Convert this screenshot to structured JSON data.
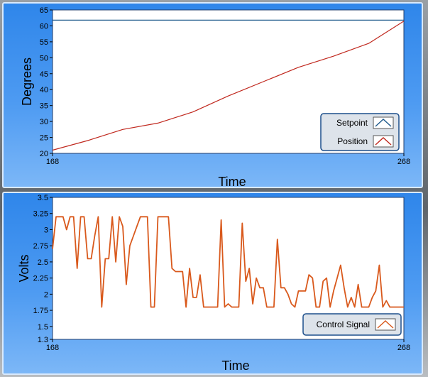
{
  "chart_data": [
    {
      "type": "line",
      "title": "",
      "xlabel": "Time",
      "ylabel": "Degrees",
      "xlim": [
        168,
        268
      ],
      "ylim": [
        20,
        65
      ],
      "xticks": [
        "168",
        "268"
      ],
      "yticks": [
        "20",
        "25",
        "30",
        "35",
        "40",
        "45",
        "50",
        "55",
        "60",
        "65"
      ],
      "legend": {
        "placement": "bottom-right",
        "entries": [
          "Setpoint",
          "Position"
        ]
      },
      "series": [
        {
          "name": "Setpoint",
          "color": "#1f5a8c",
          "x": [
            168,
            268
          ],
          "values": [
            61.8,
            61.8
          ]
        },
        {
          "name": "Position",
          "color": "#c0281e",
          "x": [
            168,
            178,
            188,
            198,
            208,
            218,
            228,
            238,
            248,
            258,
            268
          ],
          "values": [
            21,
            24,
            27.5,
            29.5,
            33,
            38,
            42.5,
            47,
            50.5,
            54.5,
            61.5
          ]
        }
      ]
    },
    {
      "type": "line",
      "title": "",
      "xlabel": "Time",
      "ylabel": "Volts",
      "xlim": [
        168,
        268
      ],
      "ylim": [
        1.3,
        3.5
      ],
      "xticks": [
        "168",
        "268"
      ],
      "yticks": [
        "1.3",
        "1.5",
        "1.75",
        "2",
        "2.25",
        "2.5",
        "2.75",
        "3",
        "3.25",
        "3.5"
      ],
      "legend": {
        "placement": "bottom-right",
        "entries": [
          "Control Signal"
        ]
      },
      "series": [
        {
          "name": "Control Signal",
          "color": "#d9591c",
          "x": [
            168,
            169,
            170,
            171,
            172,
            173,
            174,
            175,
            176,
            177,
            178,
            179,
            180,
            181,
            182,
            183,
            184,
            185,
            186,
            187,
            188,
            189,
            190,
            191,
            192,
            193,
            194,
            195,
            196,
            197,
            198,
            199,
            200,
            201,
            202,
            203,
            204,
            205,
            206,
            207,
            208,
            209,
            210,
            211,
            212,
            213,
            214,
            215,
            216,
            217,
            218,
            219,
            220,
            221,
            222,
            223,
            224,
            225,
            226,
            227,
            228,
            229,
            230,
            231,
            232,
            233,
            234,
            235,
            236,
            237,
            238,
            239,
            240,
            241,
            242,
            243,
            244,
            245,
            246,
            247,
            248,
            249,
            250,
            251,
            252,
            253,
            254,
            255,
            256,
            257,
            258,
            259,
            260,
            261,
            262,
            263,
            264,
            265,
            266,
            267,
            268
          ],
          "values": [
            2.7,
            3.2,
            3.2,
            3.2,
            3.0,
            3.2,
            3.2,
            2.4,
            3.2,
            3.2,
            2.55,
            2.55,
            2.9,
            3.2,
            1.8,
            2.55,
            2.55,
            3.2,
            2.5,
            3.2,
            3.05,
            2.15,
            2.75,
            2.9,
            3.05,
            3.2,
            3.2,
            3.2,
            1.8,
            1.8,
            3.2,
            3.2,
            3.2,
            3.2,
            2.4,
            2.35,
            2.35,
            2.35,
            1.8,
            2.4,
            1.95,
            1.95,
            2.3,
            1.8,
            1.8,
            1.8,
            1.8,
            1.8,
            3.15,
            1.8,
            1.85,
            1.8,
            1.8,
            1.8,
            3.1,
            2.2,
            2.4,
            1.85,
            2.25,
            2.1,
            2.1,
            1.8,
            1.8,
            1.8,
            2.85,
            2.1,
            2.1,
            2.0,
            1.85,
            1.8,
            2.05,
            2.05,
            2.05,
            2.3,
            2.25,
            1.8,
            1.8,
            2.2,
            2.25,
            1.8,
            2.05,
            2.25,
            2.45,
            2.1,
            1.8,
            1.95,
            1.8,
            2.15,
            1.8,
            1.8,
            1.8,
            1.95,
            2.05,
            2.45,
            1.8,
            1.9,
            1.8,
            1.8,
            1.8,
            1.8,
            1.8
          ]
        }
      ]
    }
  ]
}
